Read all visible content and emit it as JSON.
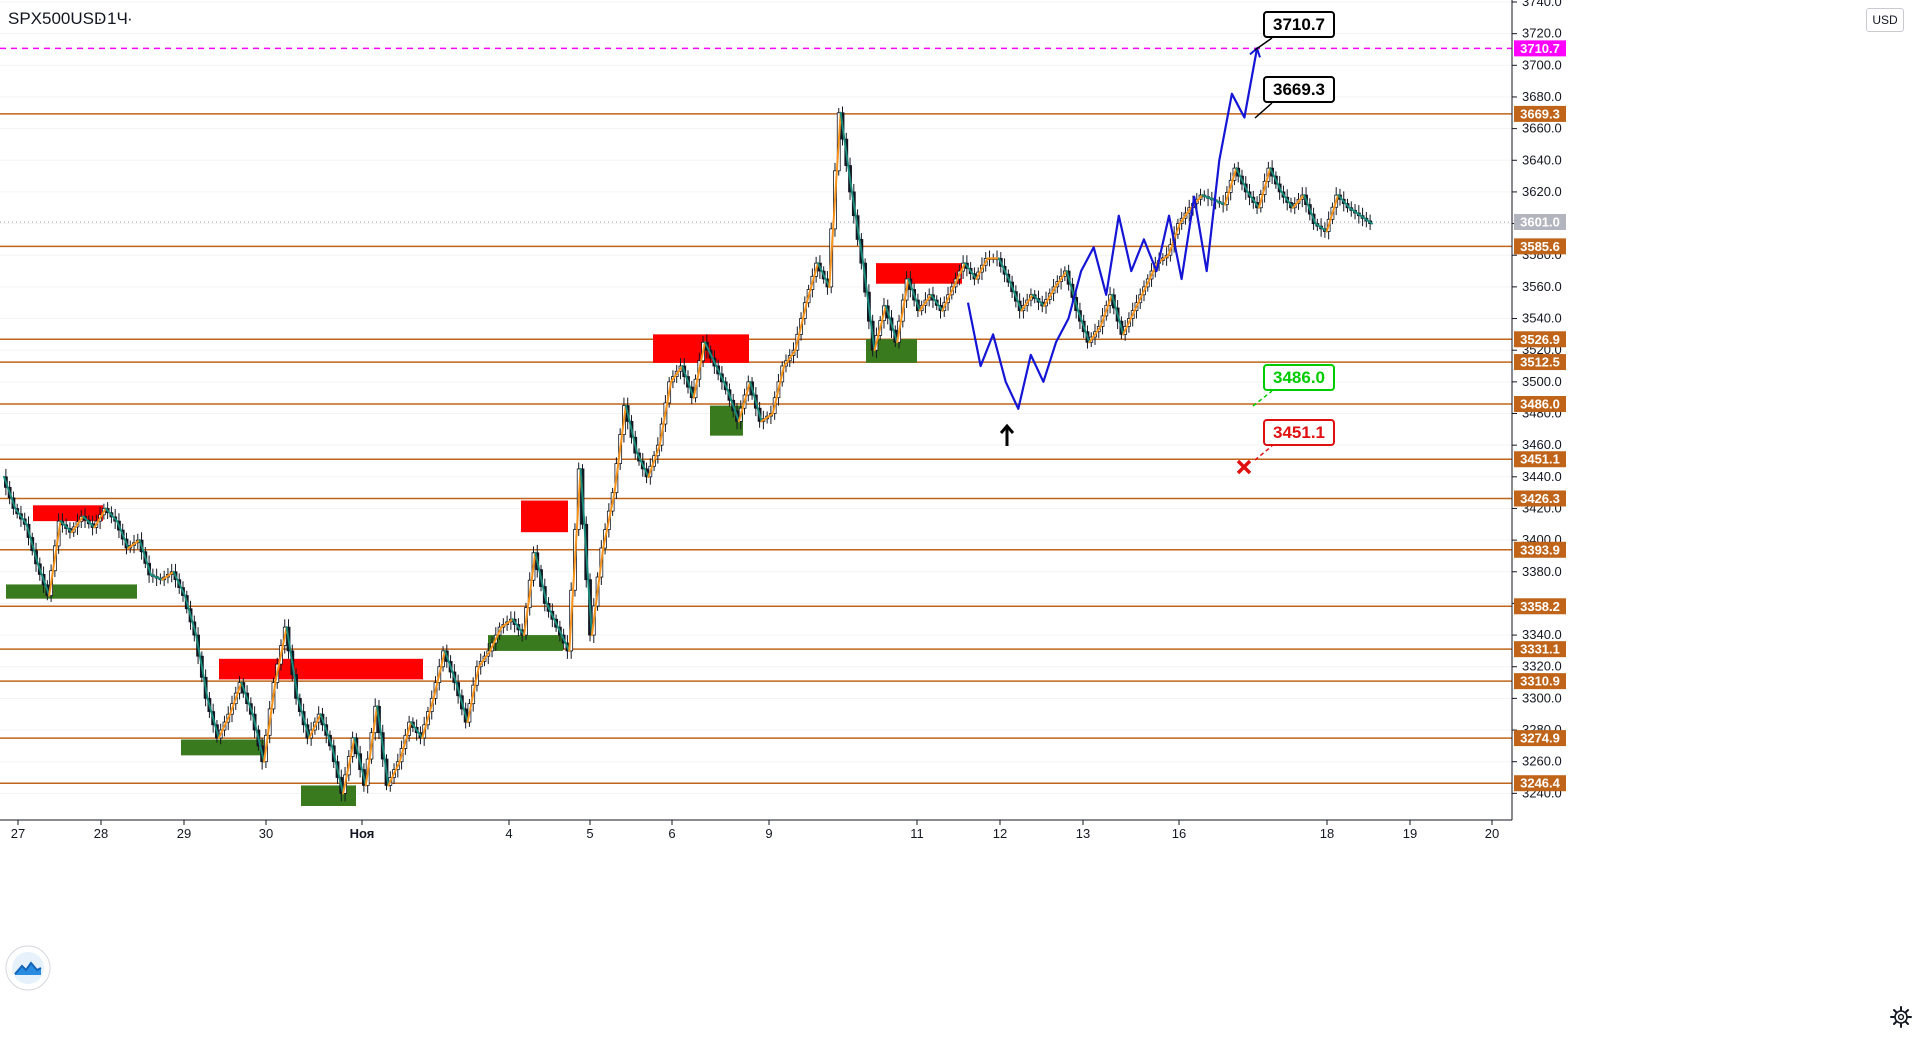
{
  "header": {
    "symbol": "SPX500USD",
    "interval": "1Ч"
  },
  "currency_badge": "USD",
  "colors": {
    "level_line": "#c0641a",
    "level_tag": "#c0641a",
    "magenta_line": "#ff00ff",
    "supply_zone": "#ff0000",
    "demand_zone": "#3a7a1e",
    "zigzag_orange": "#f7931a",
    "zigzag_teal": "#1a8a7a",
    "forecast_blue": "#1515d6",
    "callout_green": "#00cc00",
    "callout_red": "#e01010",
    "current_price_tag": "#b2b5be"
  },
  "icons": [
    "settings-icon",
    "logo-icon",
    "up-arrow-icon",
    "x-mark-icon"
  ],
  "chart_data": {
    "type": "candlestick",
    "title": "",
    "y_axis": {
      "range": [
        3220,
        3740
      ],
      "ticks": [
        3240,
        3260,
        3280,
        3300,
        3320,
        3340,
        3360,
        3380,
        3400,
        3420,
        3440,
        3460,
        3480,
        3500,
        3520,
        3540,
        3560,
        3580,
        3600,
        3620,
        3640,
        3660,
        3680,
        3700,
        3720,
        3740
      ]
    },
    "x_axis": {
      "labels": [
        "27",
        "28",
        "29",
        "30",
        "Ноя",
        "4",
        "5",
        "6",
        "9",
        "11",
        "12",
        "13",
        "16",
        "18",
        "19",
        "20"
      ]
    },
    "horizontal_levels": [
      "3669.3",
      "3585.6",
      "3526.9",
      "3512.5",
      "3486.0",
      "3451.1",
      "3426.3",
      "3393.9",
      "3358.2",
      "3331.1",
      "3310.9",
      "3274.9",
      "3246.4"
    ],
    "target_level": "3710.7",
    "current_price": "3601.0",
    "supply_zones": [
      {
        "x_from": "27",
        "x_to": "28",
        "from": 3412,
        "to": 3422
      },
      {
        "x_from": "5",
        "x_to": "5",
        "from": 3405,
        "to": 3425
      },
      {
        "x_from": "29",
        "x_to": "Ноя",
        "from": 3312,
        "to": 3325
      },
      {
        "x_from": "6",
        "x_to": "9",
        "from": 3512,
        "to": 3530
      },
      {
        "x_from": "11",
        "x_to": "11",
        "from": 3562,
        "to": 3575
      }
    ],
    "demand_zones": [
      {
        "x_from": "27",
        "x_to": "28",
        "from": 3363,
        "to": 3372
      },
      {
        "x_from": "29",
        "x_to": "30",
        "from": 3264,
        "to": 3274
      },
      {
        "x_from": "30",
        "x_to": "Ноя",
        "from": 3232,
        "to": 3245
      },
      {
        "x_from": "4",
        "x_to": "5",
        "from": 3330,
        "to": 3340
      },
      {
        "x_from": "6",
        "x_to": "6",
        "from": 3466,
        "to": 3485
      },
      {
        "x_from": "11",
        "x_to": "11",
        "from": 3512,
        "to": 3527
      }
    ],
    "callouts": [
      {
        "label": "3710.7",
        "color": "#000000"
      },
      {
        "label": "3669.3",
        "color": "#000000"
      },
      {
        "label": "3486.0",
        "color": "#00cc00"
      },
      {
        "label": "3451.1",
        "color": "#e01010"
      }
    ],
    "forecast_path": [
      [
        3550,
        3510,
        3530,
        3500,
        3483,
        3517,
        3500,
        3525,
        3540,
        3570,
        3585,
        3555,
        3605,
        3570,
        3590,
        3570,
        3605,
        3565,
        3617,
        3570,
        3640,
        3682,
        3667,
        3710.7
      ]
    ],
    "price_path": [
      3440,
      3420,
      3410,
      3385,
      3365,
      3412,
      3405,
      3415,
      3408,
      3420,
      3412,
      3395,
      3400,
      3378,
      3375,
      3380,
      3365,
      3340,
      3300,
      3275,
      3290,
      3310,
      3290,
      3260,
      3310,
      3345,
      3300,
      3275,
      3290,
      3270,
      3240,
      3275,
      3245,
      3295,
      3245,
      3260,
      3285,
      3275,
      3300,
      3330,
      3310,
      3285,
      3320,
      3330,
      3345,
      3350,
      3340,
      3392,
      3360,
      3345,
      3330,
      3445,
      3340,
      3395,
      3430,
      3485,
      3455,
      3440,
      3460,
      3500,
      3510,
      3490,
      3525,
      3510,
      3495,
      3475,
      3500,
      3475,
      3480,
      3510,
      3520,
      3550,
      3575,
      3560,
      3670,
      3620,
      3575,
      3520,
      3548,
      3525,
      3565,
      3545,
      3555,
      3545,
      3560,
      3575,
      3565,
      3578,
      3578,
      3563,
      3545,
      3555,
      3548,
      3560,
      3570,
      3545,
      3525,
      3535,
      3555,
      3530,
      3545,
      3560,
      3575,
      3580,
      3600,
      3610,
      3618,
      3615,
      3612,
      3635,
      3620,
      3610,
      3635,
      3620,
      3610,
      3618,
      3600,
      3595,
      3618,
      3610,
      3605,
      3600
    ]
  }
}
